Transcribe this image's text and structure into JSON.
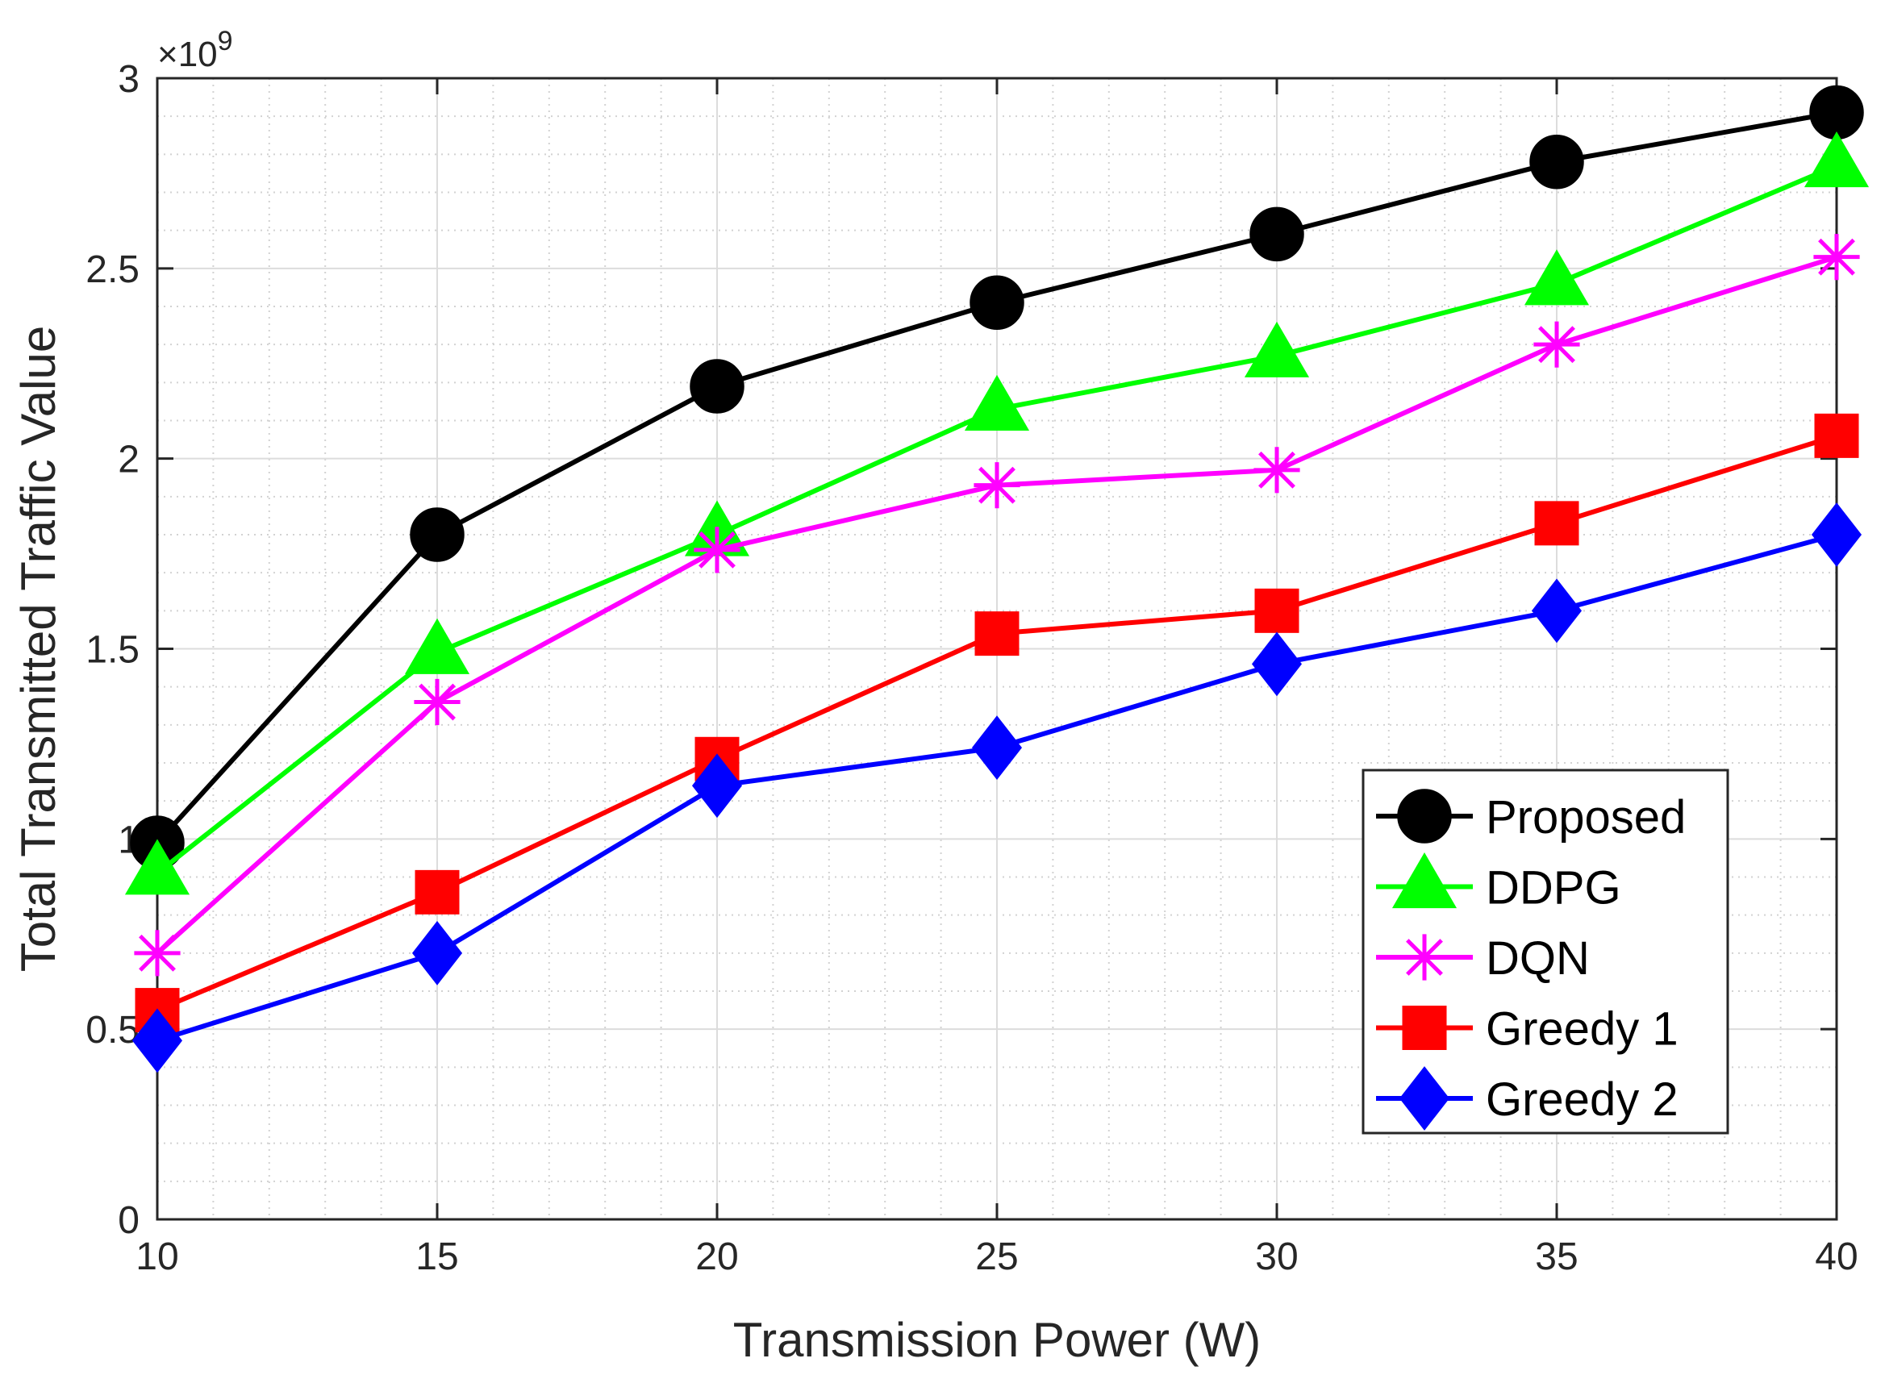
{
  "chart_data": {
    "type": "line",
    "title": "",
    "xlabel": "Transmission Power (W)",
    "ylabel": "Total Transmitted Traffic Value",
    "y_multiplier_base": "×10",
    "y_multiplier_exp": "9",
    "x": [
      10,
      15,
      20,
      25,
      30,
      35,
      40
    ],
    "xlim": [
      10,
      40
    ],
    "ylim": [
      0,
      3
    ],
    "xticks": [
      10,
      15,
      20,
      25,
      30,
      35,
      40
    ],
    "xtick_labels": [
      "10",
      "15",
      "20",
      "25",
      "30",
      "35",
      "40"
    ],
    "yticks": [
      0,
      0.5,
      1,
      1.5,
      2,
      2.5,
      3
    ],
    "ytick_labels": [
      "0",
      "0.5",
      "1",
      "1.5",
      "2",
      "2.5",
      "3"
    ],
    "grid": true,
    "minor_grid": true,
    "legend_position": "bottom-right",
    "series": [
      {
        "name": "Proposed",
        "color": "#000000",
        "marker": "circle",
        "values": [
          0.99,
          1.8,
          2.19,
          2.41,
          2.59,
          2.78,
          2.91
        ]
      },
      {
        "name": "DDPG",
        "color": "#00ff00",
        "marker": "triangle",
        "values": [
          0.91,
          1.49,
          1.8,
          2.13,
          2.27,
          2.46,
          2.77
        ]
      },
      {
        "name": "DQN",
        "color": "#ff00ff",
        "marker": "asterisk",
        "values": [
          0.7,
          1.36,
          1.76,
          1.93,
          1.97,
          2.3,
          2.53
        ]
      },
      {
        "name": "Greedy 1",
        "color": "#ff0000",
        "marker": "square",
        "values": [
          0.55,
          0.86,
          1.21,
          1.54,
          1.6,
          1.83,
          2.06
        ]
      },
      {
        "name": "Greedy 2",
        "color": "#0000ff",
        "marker": "diamond",
        "values": [
          0.47,
          0.7,
          1.14,
          1.24,
          1.46,
          1.6,
          1.8
        ]
      }
    ]
  }
}
